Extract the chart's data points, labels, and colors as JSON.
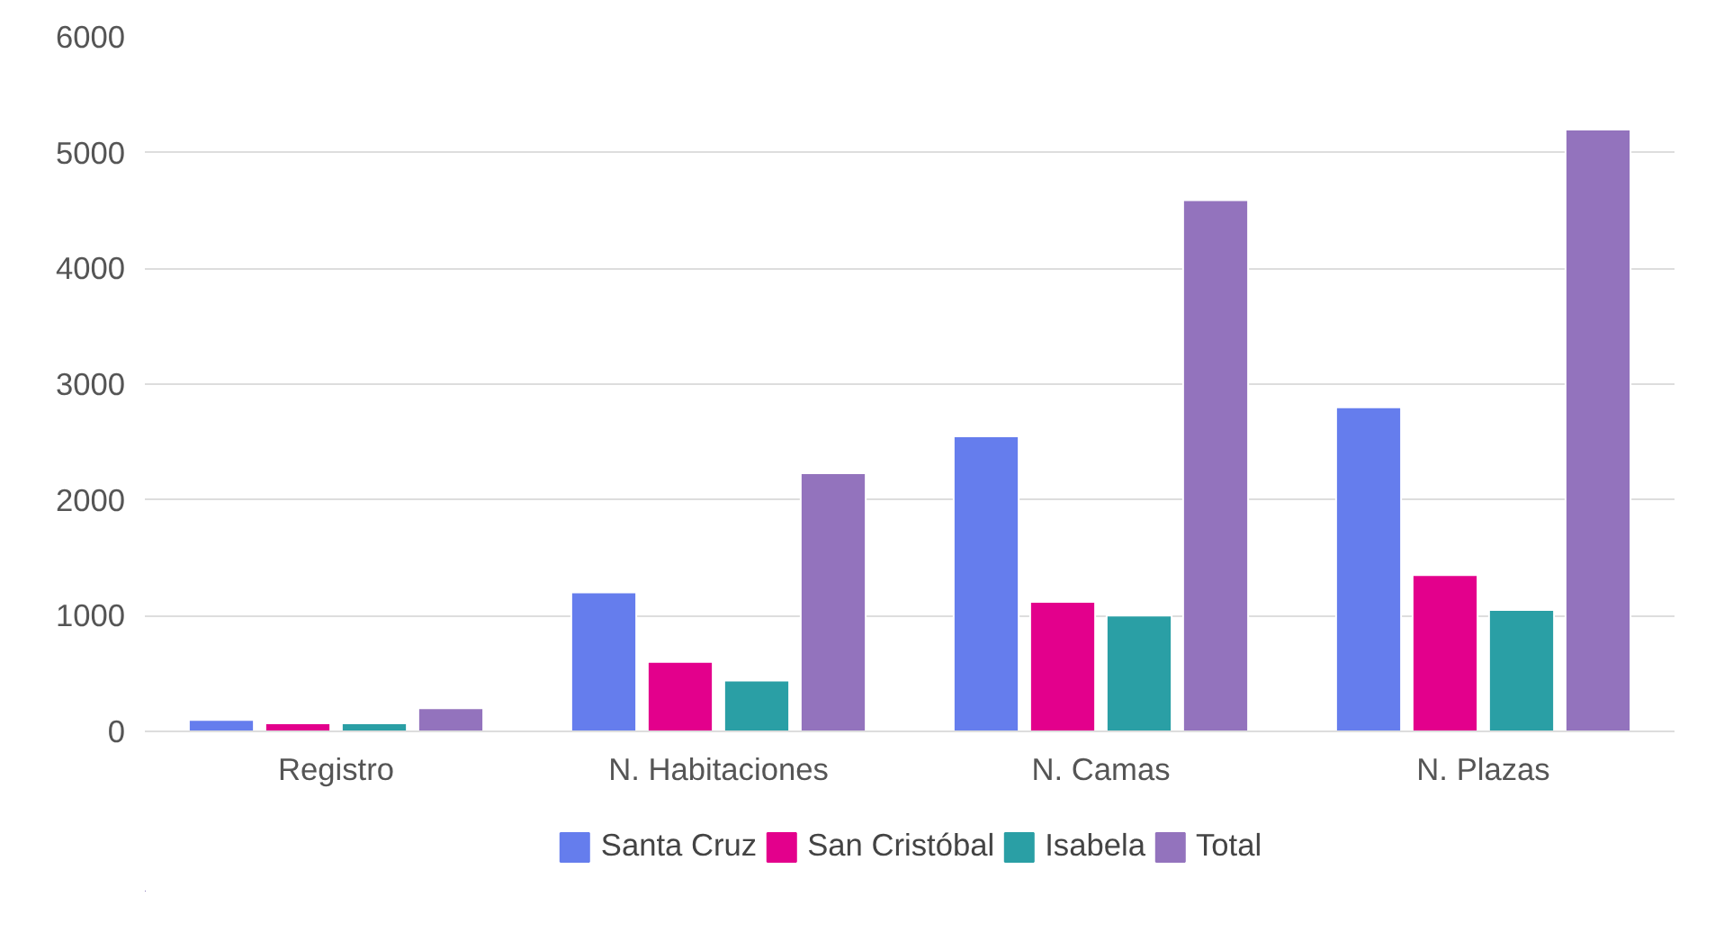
{
  "chart_data": {
    "type": "bar",
    "categories": [
      "Registro",
      "N. Habitaciones",
      "N. Camas",
      "N. Plazas"
    ],
    "series": [
      {
        "name": "Santa Cruz",
        "color": "#657ded",
        "values": [
          100,
          1200,
          2550,
          2800
        ]
      },
      {
        "name": "San Cristóbal",
        "color": "#e3008c",
        "values": [
          70,
          600,
          1120,
          1350
        ]
      },
      {
        "name": "Isabela",
        "color": "#2a9fa5",
        "values": [
          70,
          440,
          1000,
          1050
        ]
      },
      {
        "name": "Total",
        "color": "#9373bd",
        "values": [
          200,
          2230,
          4590,
          5200
        ]
      }
    ],
    "ylim": [
      0,
      6000
    ],
    "yticks": [
      0,
      1000,
      2000,
      3000,
      4000,
      5000,
      6000
    ],
    "grid": "y",
    "legend": "bottom"
  }
}
